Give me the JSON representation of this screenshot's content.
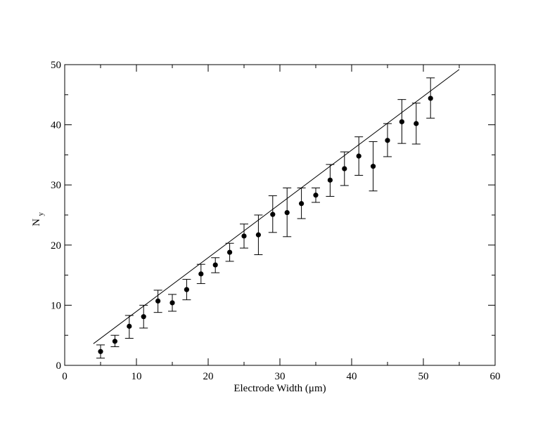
{
  "chart_data": {
    "type": "scatter",
    "title": "",
    "xlabel": "Electrode Width (μm)",
    "ylabel_main": "N",
    "ylabel_sub": "y",
    "xlim": [
      0,
      60
    ],
    "ylim": [
      0,
      50
    ],
    "xticks": [
      "0",
      "10",
      "20",
      "30",
      "40",
      "50",
      "60"
    ],
    "yticks": [
      "0",
      "10",
      "20",
      "30",
      "40",
      "50"
    ],
    "grid": false,
    "legend": "none",
    "colors": {
      "marker": "#000000",
      "line": "#000000",
      "axis": "#000000",
      "background": "#ffffff"
    },
    "series": [
      {
        "kind": "points-with-errorbars",
        "points": [
          {
            "x": 5,
            "y": 2.3,
            "lo": 1.2,
            "hi": 3.4
          },
          {
            "x": 7,
            "y": 4.0,
            "lo": 3.1,
            "hi": 5.0
          },
          {
            "x": 9,
            "y": 6.5,
            "lo": 4.5,
            "hi": 8.3
          },
          {
            "x": 11,
            "y": 8.1,
            "lo": 6.2,
            "hi": 10.0
          },
          {
            "x": 13,
            "y": 10.7,
            "lo": 8.8,
            "hi": 12.5
          },
          {
            "x": 15,
            "y": 10.4,
            "lo": 9.0,
            "hi": 11.8
          },
          {
            "x": 17,
            "y": 12.6,
            "lo": 10.9,
            "hi": 14.3
          },
          {
            "x": 19,
            "y": 15.2,
            "lo": 13.6,
            "hi": 16.8
          },
          {
            "x": 21,
            "y": 16.7,
            "lo": 15.4,
            "hi": 17.9
          },
          {
            "x": 23,
            "y": 18.8,
            "lo": 17.3,
            "hi": 20.3
          },
          {
            "x": 25,
            "y": 21.5,
            "lo": 19.5,
            "hi": 23.5
          },
          {
            "x": 27,
            "y": 21.7,
            "lo": 18.4,
            "hi": 25.0
          },
          {
            "x": 29,
            "y": 25.1,
            "lo": 22.1,
            "hi": 28.2
          },
          {
            "x": 31,
            "y": 25.4,
            "lo": 21.4,
            "hi": 29.5
          },
          {
            "x": 33,
            "y": 26.9,
            "lo": 24.4,
            "hi": 29.5
          },
          {
            "x": 35,
            "y": 28.3,
            "lo": 27.1,
            "hi": 29.5
          },
          {
            "x": 37,
            "y": 30.8,
            "lo": 28.1,
            "hi": 33.4
          },
          {
            "x": 39,
            "y": 32.7,
            "lo": 29.9,
            "hi": 35.5
          },
          {
            "x": 41,
            "y": 34.8,
            "lo": 31.6,
            "hi": 38.0
          },
          {
            "x": 43,
            "y": 33.1,
            "lo": 29.0,
            "hi": 37.2
          },
          {
            "x": 45,
            "y": 37.4,
            "lo": 34.7,
            "hi": 40.2
          },
          {
            "x": 47,
            "y": 40.5,
            "lo": 36.9,
            "hi": 44.2
          },
          {
            "x": 49,
            "y": 40.2,
            "lo": 36.8,
            "hi": 43.6
          },
          {
            "x": 51,
            "y": 44.4,
            "lo": 41.1,
            "hi": 47.8
          }
        ]
      },
      {
        "kind": "line",
        "x": [
          4,
          55
        ],
        "y": [
          3.6,
          49.2
        ]
      }
    ]
  }
}
